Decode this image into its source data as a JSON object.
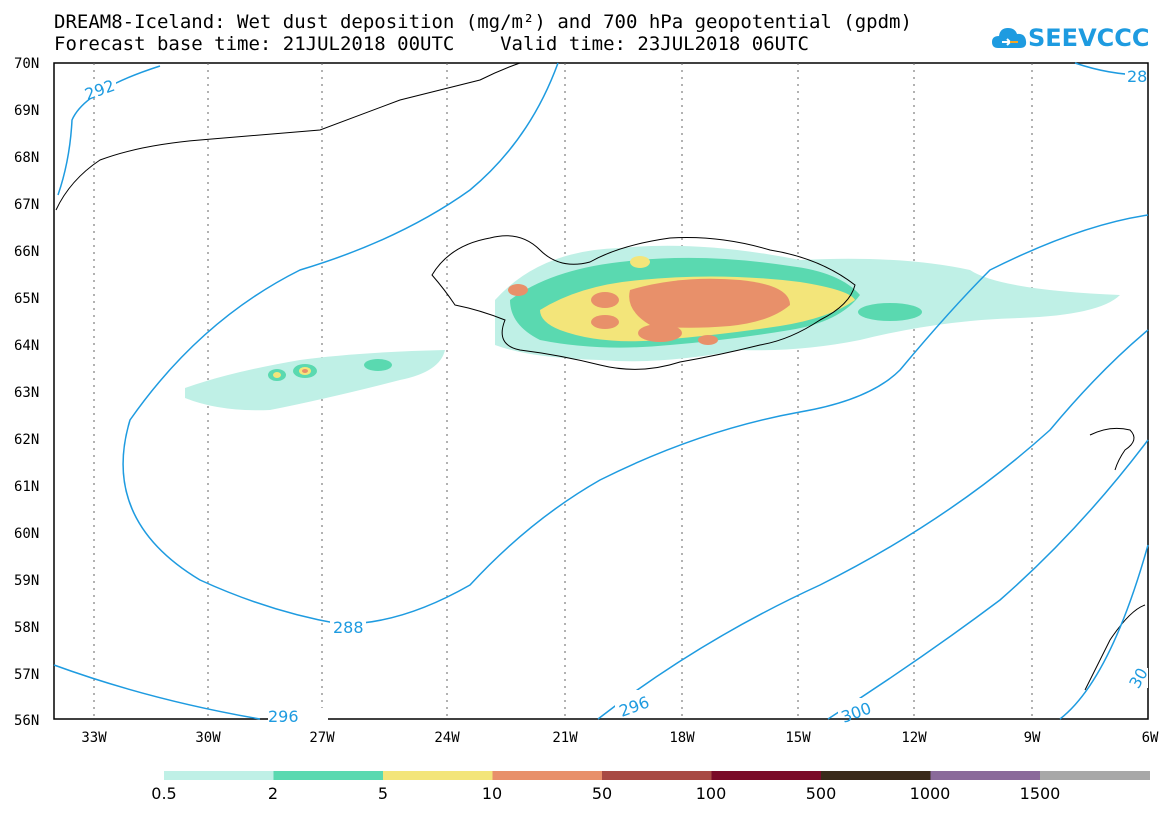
{
  "title": {
    "line1": "DREAM8-Iceland: Wet dust deposition (mg/m²) and 700 hPa geopotential (gpdm)",
    "line2": "Forecast base time: 21JUL2018 00UTC    Valid time: 23JUL2018 06UTC"
  },
  "logo": {
    "text": "SEEVCCC",
    "icon": "cloud-icon",
    "color": "#1e9be0"
  },
  "map": {
    "lat_ticks": [
      "70N",
      "69N",
      "68N",
      "67N",
      "66N",
      "65N",
      "64N",
      "63N",
      "62N",
      "61N",
      "60N",
      "59N",
      "58N",
      "57N",
      "56N"
    ],
    "lon_ticks": [
      "33W",
      "30W",
      "27W",
      "24W",
      "21W",
      "18W",
      "15W",
      "12W",
      "9W",
      "6W"
    ],
    "contour_labels": [
      "292",
      "28",
      "288",
      "296",
      "296",
      "300",
      "30"
    ],
    "contour_color": "#1e9be0"
  },
  "legend": {
    "labels": [
      "0.5",
      "2",
      "5",
      "10",
      "50",
      "100",
      "500",
      "1000",
      "1500"
    ],
    "colors": [
      "#bff0e6",
      "#5ad9b0",
      "#f3e57a",
      "#e8906a",
      "#a84a44",
      "#7a0a28",
      "#3a2a1a",
      "#8a6a9a",
      "#a8a8a8"
    ]
  }
}
